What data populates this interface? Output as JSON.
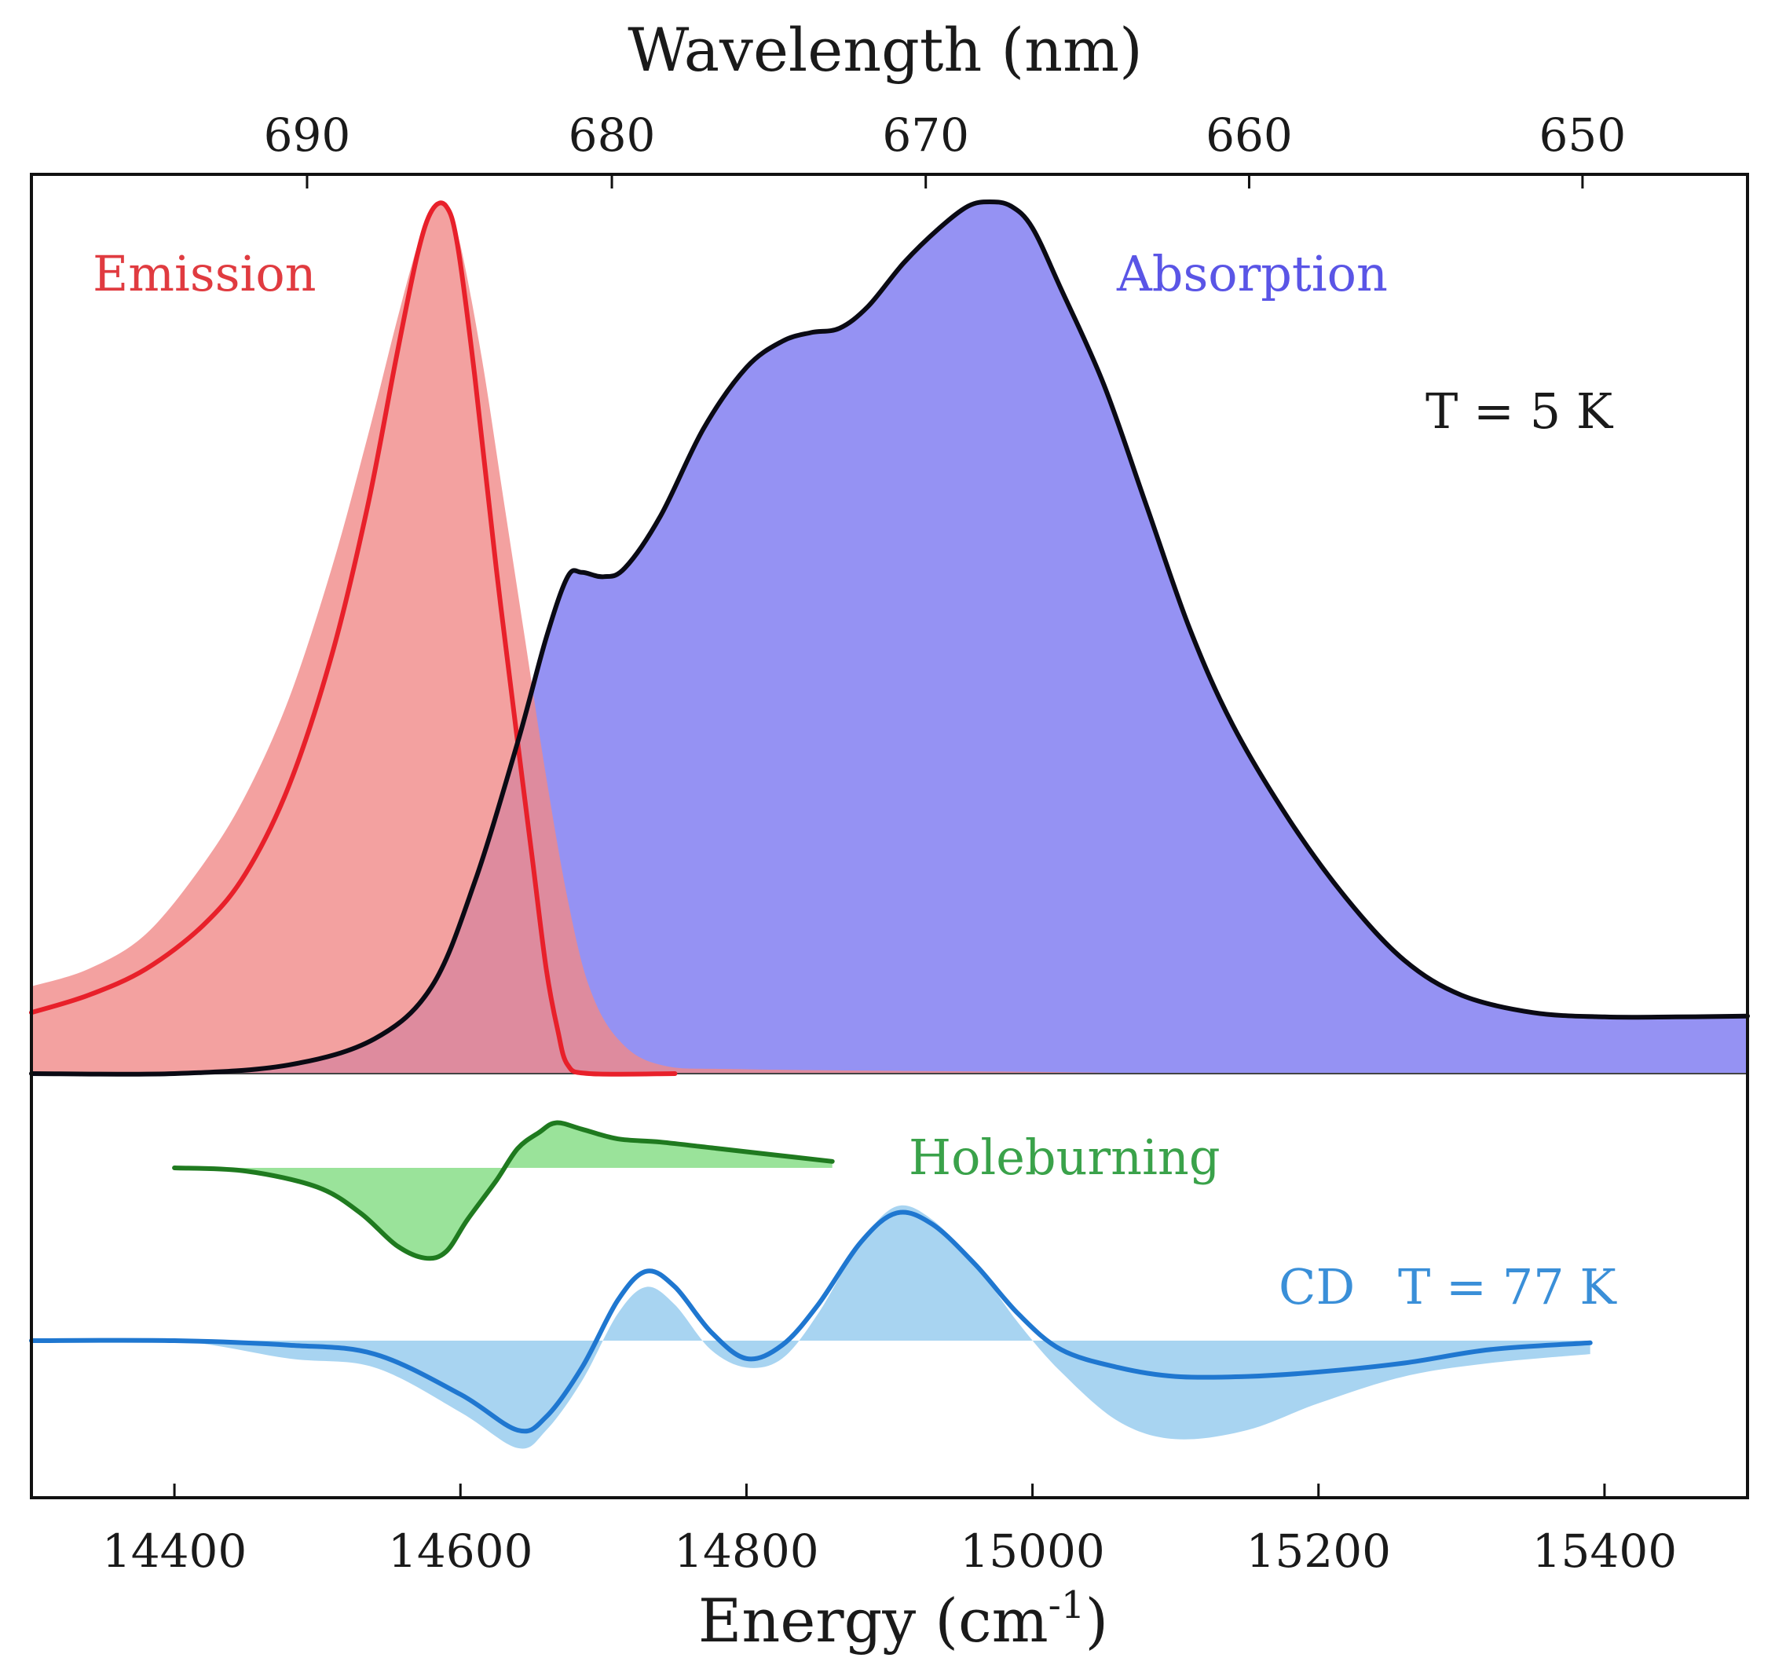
{
  "chart_data": {
    "type": "area",
    "title": "",
    "xlabel": "Energy (cm",
    "xlabel_exponent": "-1",
    "xlabel_close": ")",
    "x2label": "Wavelength (nm)",
    "xlim": [
      14300,
      15500
    ],
    "xticks": [
      14400,
      14600,
      14800,
      15000,
      15200,
      15400
    ],
    "x2ticks_nm": [
      690,
      680,
      670,
      660,
      650
    ],
    "y_axis": "arbitrary units (no tick labels)",
    "legend": "inline labels",
    "annotations": {
      "temperature_top": "T = 5 K"
    },
    "series": [
      {
        "name": "Emission",
        "color": "#e8202a",
        "fill": "#f08a88",
        "baseline": 0,
        "points": [
          [
            14300,
            0.07
          ],
          [
            14340,
            0.09
          ],
          [
            14380,
            0.12
          ],
          [
            14420,
            0.17
          ],
          [
            14450,
            0.23
          ],
          [
            14480,
            0.33
          ],
          [
            14510,
            0.48
          ],
          [
            14535,
            0.65
          ],
          [
            14555,
            0.82
          ],
          [
            14570,
            0.94
          ],
          [
            14580,
            0.99
          ],
          [
            14590,
            0.995
          ],
          [
            14598,
            0.95
          ],
          [
            14610,
            0.8
          ],
          [
            14625,
            0.58
          ],
          [
            14640,
            0.38
          ],
          [
            14650,
            0.25
          ],
          [
            14660,
            0.12
          ],
          [
            14668,
            0.05
          ],
          [
            14675,
            0.01
          ],
          [
            14690,
            0.0
          ],
          [
            14750,
            0.0
          ]
        ],
        "raw_fill_points": [
          [
            14300,
            0.1
          ],
          [
            14340,
            0.12
          ],
          [
            14380,
            0.16
          ],
          [
            14420,
            0.24
          ],
          [
            14450,
            0.32
          ],
          [
            14480,
            0.43
          ],
          [
            14510,
            0.58
          ],
          [
            14535,
            0.73
          ],
          [
            14555,
            0.86
          ],
          [
            14570,
            0.95
          ],
          [
            14580,
            0.99
          ],
          [
            14590,
            0.995
          ],
          [
            14600,
            0.95
          ],
          [
            14615,
            0.82
          ],
          [
            14630,
            0.66
          ],
          [
            14645,
            0.5
          ],
          [
            14660,
            0.34
          ],
          [
            14675,
            0.2
          ],
          [
            14690,
            0.1
          ],
          [
            14710,
            0.04
          ],
          [
            14740,
            0.01
          ],
          [
            14800,
            0.005
          ],
          [
            15000,
            0.002
          ],
          [
            15100,
            0.0
          ]
        ]
      },
      {
        "name": "Absorption",
        "color": "#0a0a14",
        "fill": "#8f8cf2",
        "baseline": 0,
        "points": [
          [
            14300,
            0.0
          ],
          [
            14400,
            0.0
          ],
          [
            14480,
            0.01
          ],
          [
            14540,
            0.04
          ],
          [
            14580,
            0.1
          ],
          [
            14610,
            0.22
          ],
          [
            14640,
            0.38
          ],
          [
            14660,
            0.5
          ],
          [
            14675,
            0.57
          ],
          [
            14685,
            0.575
          ],
          [
            14700,
            0.57
          ],
          [
            14715,
            0.58
          ],
          [
            14740,
            0.64
          ],
          [
            14770,
            0.74
          ],
          [
            14800,
            0.81
          ],
          [
            14825,
            0.84
          ],
          [
            14845,
            0.85
          ],
          [
            14865,
            0.855
          ],
          [
            14885,
            0.88
          ],
          [
            14910,
            0.93
          ],
          [
            14935,
            0.97
          ],
          [
            14955,
            0.995
          ],
          [
            14970,
            1.0
          ],
          [
            14985,
            0.995
          ],
          [
            15000,
            0.97
          ],
          [
            15020,
            0.9
          ],
          [
            15050,
            0.79
          ],
          [
            15080,
            0.65
          ],
          [
            15110,
            0.51
          ],
          [
            15140,
            0.4
          ],
          [
            15180,
            0.29
          ],
          [
            15220,
            0.2
          ],
          [
            15260,
            0.13
          ],
          [
            15300,
            0.09
          ],
          [
            15350,
            0.07
          ],
          [
            15400,
            0.065
          ],
          [
            15450,
            0.065
          ],
          [
            15500,
            0.066
          ]
        ]
      },
      {
        "name": "Holeburning",
        "color": "#1f7a1f",
        "fill": "#8fe08f",
        "baseline": 0,
        "points": [
          [
            14400,
            0.0
          ],
          [
            14450,
            -0.005
          ],
          [
            14500,
            -0.03
          ],
          [
            14530,
            -0.07
          ],
          [
            14555,
            -0.12
          ],
          [
            14575,
            -0.14
          ],
          [
            14590,
            -0.13
          ],
          [
            14605,
            -0.08
          ],
          [
            14625,
            -0.02
          ],
          [
            14640,
            0.03
          ],
          [
            14655,
            0.055
          ],
          [
            14667,
            0.07
          ],
          [
            14685,
            0.06
          ],
          [
            14710,
            0.045
          ],
          [
            14740,
            0.04
          ],
          [
            14780,
            0.03
          ],
          [
            14820,
            0.02
          ],
          [
            14860,
            0.01
          ]
        ]
      },
      {
        "name": "CD",
        "annotation": "T = 77 K",
        "color": "#1f77d0",
        "fill": "#9fcff0",
        "baseline": 0,
        "points": [
          [
            14300,
            0.0
          ],
          [
            14400,
            0.0
          ],
          [
            14480,
            -0.01
          ],
          [
            14540,
            -0.03
          ],
          [
            14600,
            -0.12
          ],
          [
            14640,
            -0.2
          ],
          [
            14660,
            -0.17
          ],
          [
            14685,
            -0.06
          ],
          [
            14710,
            0.09
          ],
          [
            14730,
            0.155
          ],
          [
            14750,
            0.12
          ],
          [
            14775,
            0.02
          ],
          [
            14800,
            -0.04
          ],
          [
            14825,
            -0.01
          ],
          [
            14850,
            0.08
          ],
          [
            14880,
            0.22
          ],
          [
            14905,
            0.285
          ],
          [
            14930,
            0.26
          ],
          [
            14960,
            0.17
          ],
          [
            14990,
            0.06
          ],
          [
            15020,
            -0.02
          ],
          [
            15060,
            -0.06
          ],
          [
            15100,
            -0.08
          ],
          [
            15150,
            -0.08
          ],
          [
            15200,
            -0.07
          ],
          [
            15260,
            -0.05
          ],
          [
            15320,
            -0.02
          ],
          [
            15390,
            -0.005
          ]
        ],
        "raw_fill_points": [
          [
            14300,
            0.0
          ],
          [
            14400,
            0.0
          ],
          [
            14480,
            -0.04
          ],
          [
            14540,
            -0.06
          ],
          [
            14600,
            -0.16
          ],
          [
            14640,
            -0.24
          ],
          [
            14660,
            -0.2
          ],
          [
            14685,
            -0.09
          ],
          [
            14710,
            0.06
          ],
          [
            14730,
            0.12
          ],
          [
            14750,
            0.08
          ],
          [
            14775,
            -0.02
          ],
          [
            14800,
            -0.06
          ],
          [
            14825,
            -0.04
          ],
          [
            14850,
            0.06
          ],
          [
            14880,
            0.22
          ],
          [
            14905,
            0.3
          ],
          [
            14930,
            0.27
          ],
          [
            14960,
            0.17
          ],
          [
            14990,
            0.04
          ],
          [
            15020,
            -0.07
          ],
          [
            15060,
            -0.18
          ],
          [
            15100,
            -0.22
          ],
          [
            15150,
            -0.2
          ],
          [
            15200,
            -0.14
          ],
          [
            15260,
            -0.08
          ],
          [
            15320,
            -0.05
          ],
          [
            15390,
            -0.03
          ]
        ]
      }
    ]
  }
}
